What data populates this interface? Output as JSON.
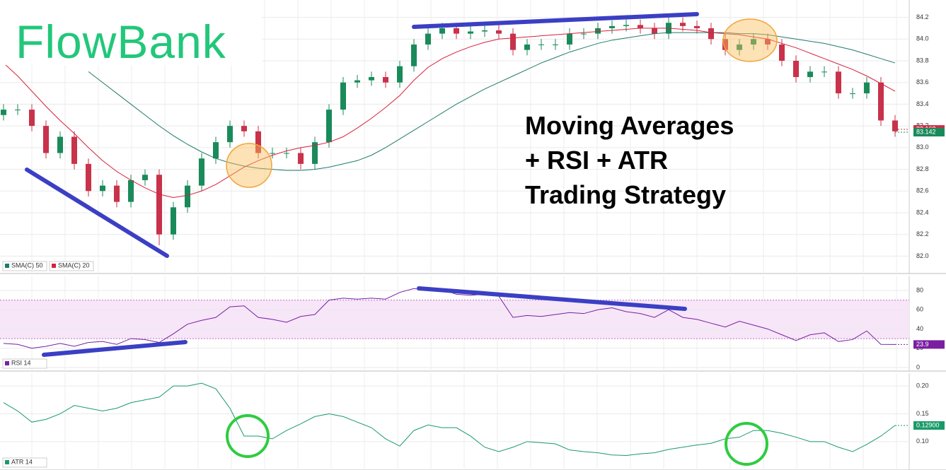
{
  "logo": "FlowBank",
  "headline": [
    "Moving Averages",
    "+ RSI + ATR",
    "Trading Strategy"
  ],
  "chart_data": [
    {
      "type": "candlestick",
      "ylim": [
        81.84,
        84.36
      ],
      "yticks": [
        {
          "value": 82.0,
          "label": "82.0"
        },
        82.2,
        82.4,
        82.6,
        82.8,
        {
          "value": 83.0,
          "label": "83.0"
        },
        83.2,
        83.4,
        83.6,
        83.8,
        {
          "value": 84.0,
          "label": "84.0"
        },
        84.2
      ],
      "grid": true,
      "up_color": "#1a8a5a",
      "down_color": "#c8324a",
      "open": [
        83.3,
        83.35,
        83.35,
        83.2,
        82.95,
        83.1,
        82.85,
        82.6,
        82.65,
        82.5,
        82.7,
        82.75,
        82.2,
        82.45,
        82.65,
        82.9,
        83.05,
        83.2,
        83.15,
        82.95,
        82.95,
        82.95,
        82.85,
        83.05,
        83.35,
        83.6,
        83.62,
        83.65,
        83.6,
        83.75,
        83.95,
        84.05,
        84.1,
        84.05,
        84.07,
        84.08,
        84.05,
        83.9,
        83.95,
        83.95,
        83.95,
        84.05,
        84.05,
        84.1,
        84.12,
        84.13,
        84.1,
        84.05,
        84.15,
        84.12,
        84.1,
        84.0,
        83.9,
        83.95,
        84.0,
        83.95,
        83.8,
        83.65,
        83.7,
        83.7,
        83.5,
        83.5,
        83.6,
        83.25
      ],
      "high": [
        83.4,
        83.4,
        83.4,
        83.25,
        83.15,
        83.15,
        82.9,
        82.7,
        82.7,
        82.75,
        82.8,
        82.8,
        82.5,
        82.7,
        82.95,
        83.1,
        83.25,
        83.25,
        83.2,
        83.0,
        83.0,
        83.0,
        83.1,
        83.4,
        83.65,
        83.67,
        83.7,
        83.7,
        83.8,
        84.0,
        84.1,
        84.15,
        84.15,
        84.12,
        84.13,
        84.13,
        84.1,
        84.0,
        84.0,
        84.0,
        84.1,
        84.1,
        84.15,
        84.17,
        84.18,
        84.18,
        84.15,
        84.2,
        84.2,
        84.17,
        84.15,
        84.05,
        84.0,
        84.05,
        84.05,
        84.0,
        83.85,
        83.75,
        83.75,
        83.75,
        83.55,
        83.65,
        83.65,
        83.3
      ],
      "low": [
        83.25,
        83.3,
        83.15,
        82.9,
        82.9,
        82.8,
        82.55,
        82.55,
        82.45,
        82.45,
        82.65,
        82.1,
        82.15,
        82.4,
        82.6,
        82.85,
        83.0,
        83.1,
        82.9,
        82.9,
        82.9,
        82.8,
        82.8,
        83.0,
        83.3,
        83.55,
        83.57,
        83.55,
        83.55,
        83.7,
        83.9,
        84.0,
        84.0,
        84.0,
        84.02,
        84.0,
        83.85,
        83.85,
        83.9,
        83.9,
        83.9,
        84.0,
        84.0,
        84.05,
        84.07,
        84.05,
        84.0,
        84.0,
        84.07,
        84.05,
        83.95,
        83.85,
        83.85,
        83.9,
        83.9,
        83.75,
        83.6,
        83.6,
        83.65,
        83.45,
        83.45,
        83.45,
        83.2,
        83.1
      ],
      "close": [
        83.35,
        83.35,
        83.2,
        82.95,
        83.1,
        82.85,
        82.6,
        82.65,
        82.5,
        82.7,
        82.75,
        82.2,
        82.45,
        82.65,
        82.9,
        83.05,
        83.2,
        83.15,
        82.95,
        82.95,
        82.95,
        82.85,
        83.05,
        83.35,
        83.6,
        83.62,
        83.65,
        83.6,
        83.75,
        83.95,
        84.05,
        84.1,
        84.05,
        84.07,
        84.08,
        84.05,
        83.9,
        83.95,
        83.95,
        83.95,
        84.05,
        84.05,
        84.1,
        84.12,
        84.13,
        84.1,
        84.05,
        84.15,
        84.12,
        84.1,
        84.0,
        83.9,
        83.95,
        84.0,
        83.95,
        83.8,
        83.65,
        83.7,
        83.7,
        83.5,
        83.5,
        83.6,
        83.25,
        83.15
      ],
      "series": [
        {
          "name": "SMA(C) 50",
          "color": "#1f7a6a",
          "values": [
            null,
            null,
            null,
            null,
            null,
            null,
            83.7,
            83.6,
            83.5,
            83.4,
            83.3,
            83.2,
            83.11,
            83.03,
            82.96,
            82.9,
            82.86,
            82.83,
            82.81,
            82.8,
            82.79,
            82.79,
            82.8,
            82.82,
            82.85,
            82.88,
            82.93,
            83.0,
            83.08,
            83.16,
            83.24,
            83.32,
            83.4,
            83.47,
            83.54,
            83.6,
            83.66,
            83.72,
            83.78,
            83.83,
            83.88,
            83.92,
            83.96,
            83.99,
            84.01,
            84.03,
            84.05,
            84.06,
            84.06,
            84.06,
            84.06,
            84.06,
            84.05,
            84.05,
            84.04,
            84.02,
            84.0,
            83.98,
            83.96,
            83.93,
            83.9,
            83.86,
            83.82,
            83.78
          ]
        },
        {
          "name": "SMA(C) 20",
          "color": "#d8203c",
          "values": [
            83.78,
            83.66,
            83.52,
            83.38,
            83.25,
            83.13,
            83.0,
            82.88,
            82.78,
            82.7,
            82.63,
            82.57,
            82.54,
            82.56,
            82.6,
            82.66,
            82.74,
            82.82,
            82.88,
            82.93,
            82.97,
            83.0,
            83.02,
            83.05,
            83.1,
            83.18,
            83.27,
            83.37,
            83.48,
            83.62,
            83.74,
            83.82,
            83.88,
            83.93,
            83.97,
            84.0,
            84.01,
            84.02,
            84.03,
            84.04,
            84.05,
            84.06,
            84.07,
            84.08,
            84.09,
            84.1,
            84.1,
            84.1,
            84.09,
            84.08,
            84.06,
            84.05,
            84.04,
            84.02,
            84.0,
            83.96,
            83.92,
            83.87,
            83.82,
            83.77,
            83.72,
            83.66,
            83.59,
            83.52
          ]
        }
      ],
      "price_tags": [
        {
          "value": 83.168,
          "color": "#c8324a"
        },
        {
          "value": 83.142,
          "color": "#1a8a5a"
        }
      ]
    },
    {
      "type": "line",
      "ylim": [
        -3.7,
        95.4
      ],
      "yticks": [
        0,
        20,
        40,
        60,
        80
      ],
      "band": [
        30,
        70
      ],
      "series": [
        {
          "name": "RSI 14",
          "color": "#7a1fa2",
          "values": [
            25,
            24,
            20,
            22,
            25,
            22,
            26,
            27,
            24,
            30,
            29,
            26,
            35,
            45,
            49,
            52,
            63,
            64,
            52,
            50,
            47,
            53,
            55,
            70,
            72,
            71,
            72,
            71,
            78,
            82,
            80,
            81,
            76,
            75,
            76,
            74,
            52,
            54,
            53,
            55,
            57,
            56,
            60,
            62,
            58,
            56,
            52,
            60,
            52,
            50,
            46,
            42,
            48,
            44,
            40,
            34,
            28,
            34,
            36,
            27,
            29,
            38,
            24,
            23.9
          ]
        }
      ],
      "last_value": 23.9
    },
    {
      "type": "line",
      "ylim": [
        0.049,
        0.223
      ],
      "yticks": [
        {
          "value": 0.1,
          "label": "0.10"
        },
        0.15,
        {
          "value": 0.2,
          "label": "0.20"
        }
      ],
      "series": [
        {
          "name": "ATR 14",
          "color": "#1a9a6a",
          "values": [
            0.17,
            0.155,
            0.135,
            0.14,
            0.15,
            0.165,
            0.16,
            0.155,
            0.16,
            0.17,
            0.175,
            0.18,
            0.2,
            0.2,
            0.205,
            0.195,
            0.16,
            0.11,
            0.11,
            0.105,
            0.12,
            0.132,
            0.145,
            0.15,
            0.145,
            0.135,
            0.125,
            0.105,
            0.092,
            0.12,
            0.13,
            0.125,
            0.125,
            0.11,
            0.09,
            0.082,
            0.09,
            0.1,
            0.098,
            0.096,
            0.085,
            0.082,
            0.08,
            0.076,
            0.075,
            0.078,
            0.08,
            0.086,
            0.09,
            0.094,
            0.097,
            0.105,
            0.108,
            0.12,
            0.12,
            0.115,
            0.108,
            0.1,
            0.1,
            0.09,
            0.082,
            0.095,
            0.11,
            0.129
          ]
        }
      ],
      "last_value": {
        "value": 0.129,
        "label": "0.12900"
      }
    }
  ]
}
